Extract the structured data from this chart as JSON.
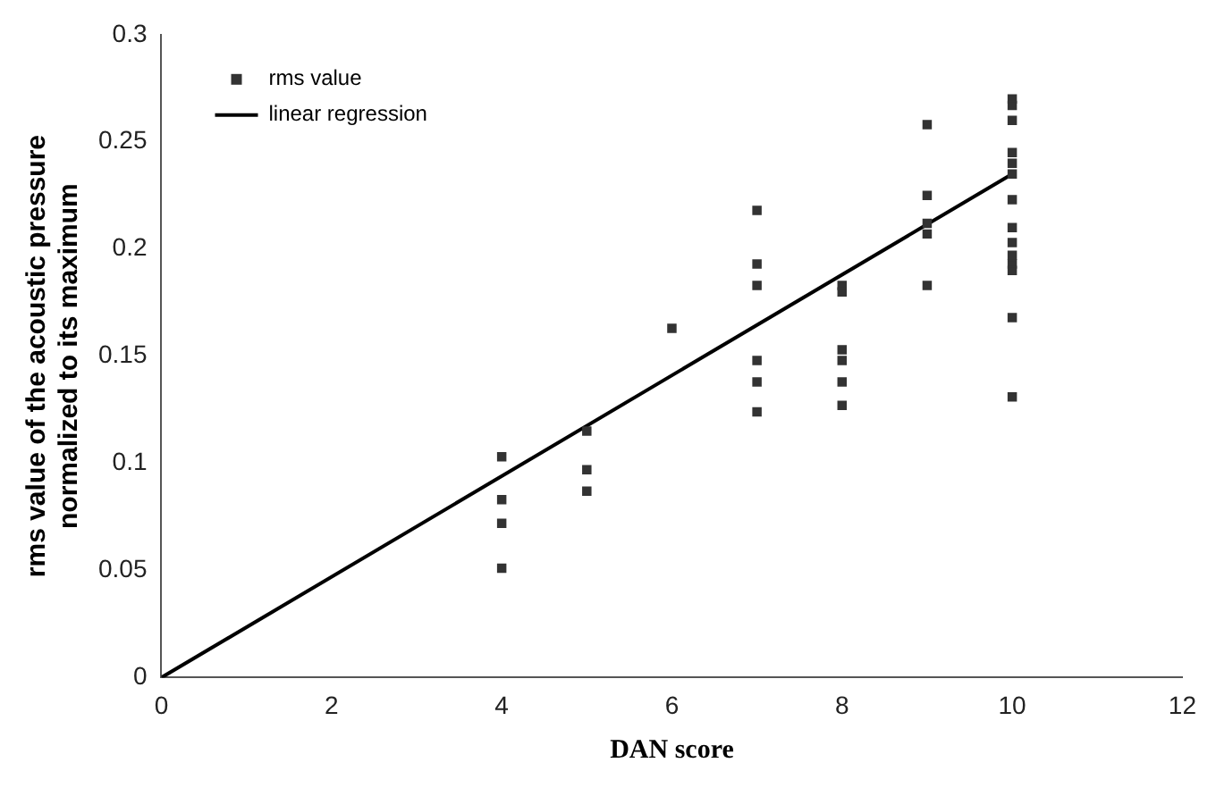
{
  "chart_data": {
    "type": "scatter",
    "xlabel": "DAN score",
    "ylabel": "rms value of the acoustic pressure normalized to its maximum",
    "xlim": [
      0,
      12
    ],
    "xticks": [
      0,
      2,
      4,
      6,
      8,
      10,
      12
    ],
    "ylim": [
      0,
      0.3
    ],
    "yticks": [
      0,
      0.05,
      0.1,
      0.15,
      0.2,
      0.25,
      0.3
    ],
    "grid": false,
    "legend": "top left",
    "marker": "square",
    "series": [
      {
        "name": "rms value",
        "color": "#333333",
        "x": [
          4,
          4,
          4,
          4,
          5,
          5,
          5,
          6,
          7,
          7,
          7,
          7,
          7,
          7,
          8,
          8,
          8,
          8,
          8,
          8,
          9,
          9,
          9,
          9,
          9,
          10,
          10,
          10,
          10,
          10,
          10,
          10,
          10,
          10,
          10,
          10,
          10,
          10,
          10
        ],
        "values": [
          0.103,
          0.083,
          0.072,
          0.051,
          0.115,
          0.097,
          0.087,
          0.163,
          0.218,
          0.193,
          0.183,
          0.148,
          0.138,
          0.124,
          0.183,
          0.18,
          0.153,
          0.148,
          0.138,
          0.127,
          0.258,
          0.225,
          0.212,
          0.207,
          0.183,
          0.27,
          0.267,
          0.26,
          0.245,
          0.24,
          0.235,
          0.223,
          0.21,
          0.203,
          0.197,
          0.193,
          0.19,
          0.168,
          0.131
        ]
      },
      {
        "name": "linear regression",
        "type": "line",
        "color": "#000000",
        "x": [
          0,
          10
        ],
        "values": [
          0,
          0.235
        ],
        "marker": "none",
        "line_style": "solid"
      }
    ]
  }
}
